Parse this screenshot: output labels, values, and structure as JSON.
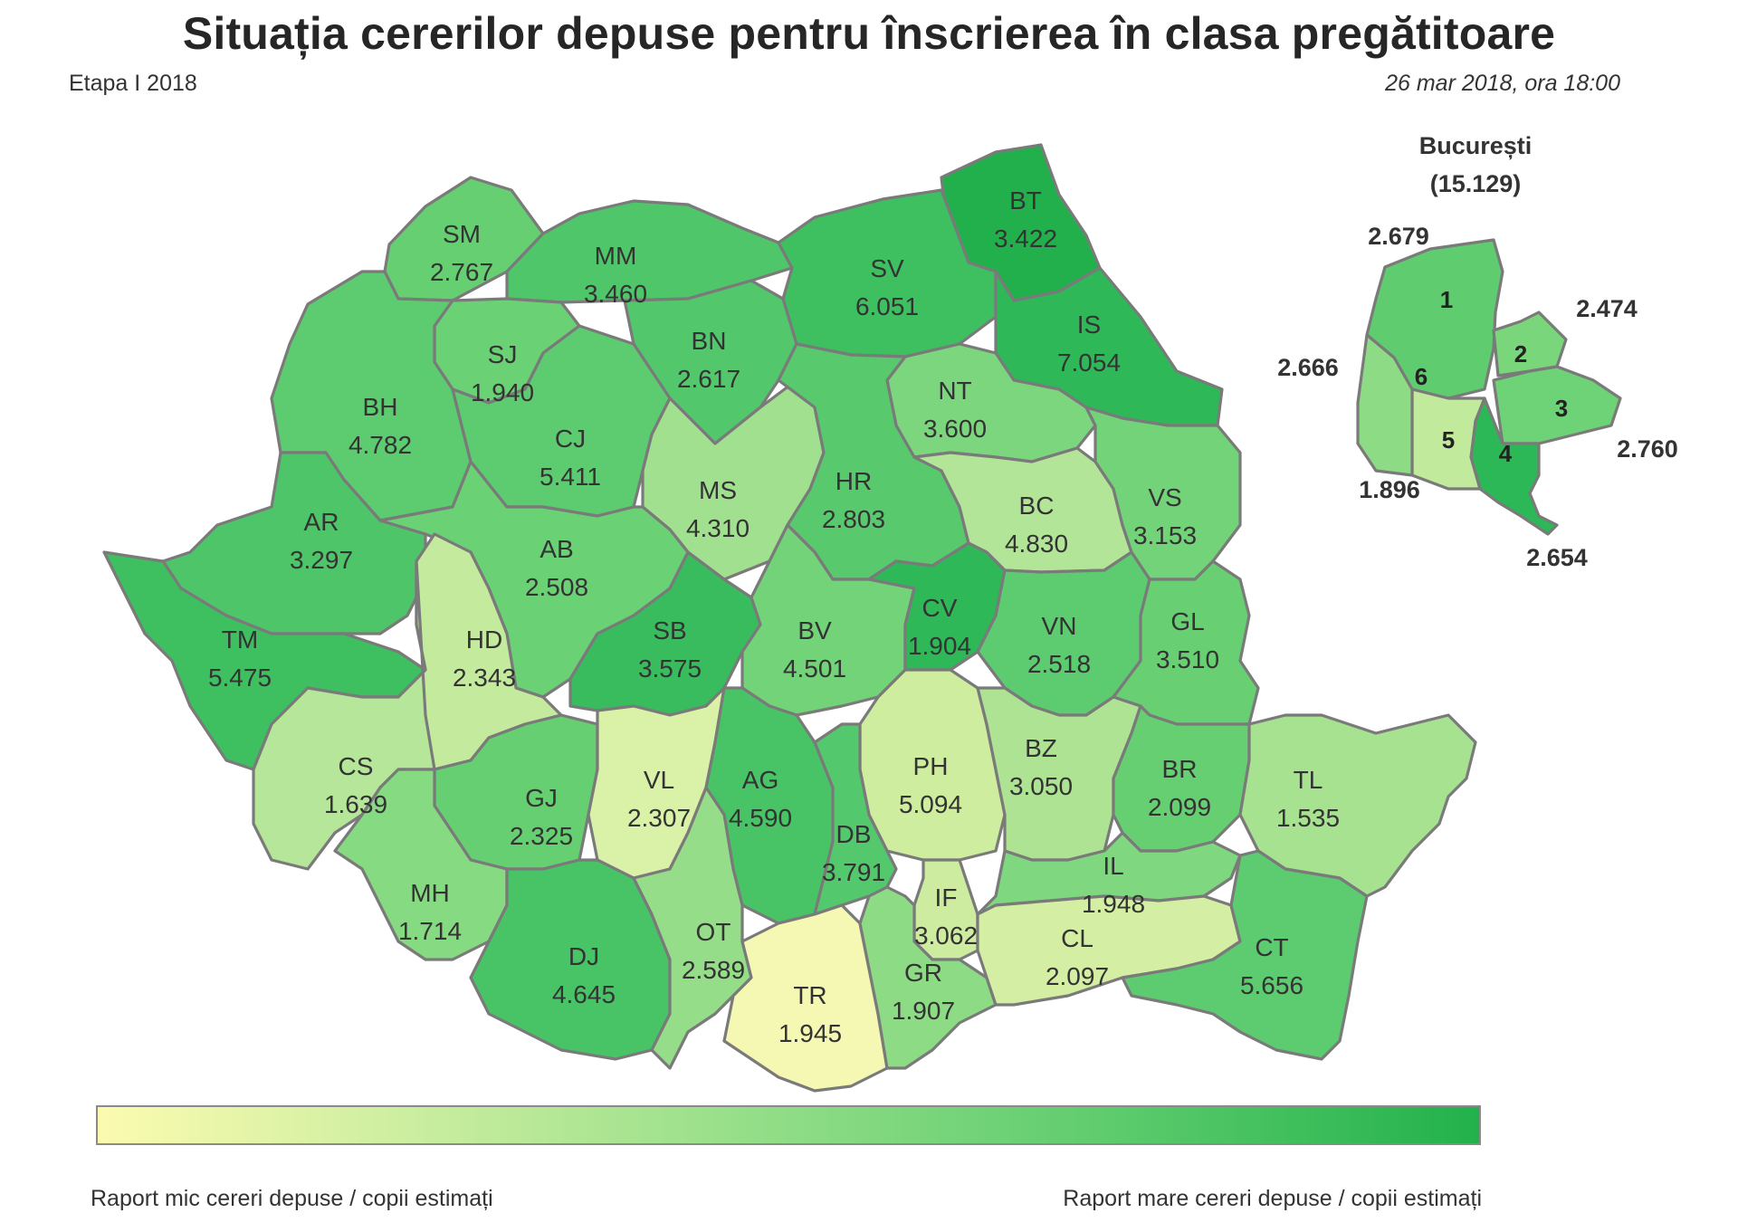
{
  "title": "Situația cererilor depuse pentru înscrierea în clasa pregătitoare",
  "stage": "Etapa I 2018",
  "timestamp": "26 mar 2018, ora 18:00",
  "bucharest": {
    "name": "București",
    "total": "(15.129)",
    "sectors": [
      {
        "id": "1",
        "value": "2.679",
        "color": "#5fcc6f"
      },
      {
        "id": "2",
        "value": "2.474",
        "color": "#7ad67b"
      },
      {
        "id": "3",
        "value": "2.760",
        "color": "#6ed276"
      },
      {
        "id": "4",
        "value": "2.654",
        "color": "#2db857"
      },
      {
        "id": "5",
        "value": "1.896",
        "color": "#c1ea9c"
      },
      {
        "id": "6",
        "value": "2.666",
        "color": "#8ddc85"
      }
    ]
  },
  "counties": [
    {
      "code": "SM",
      "value": "2.767",
      "color": "#66cf72"
    },
    {
      "code": "MM",
      "value": "3.460",
      "color": "#4ec669"
    },
    {
      "code": "BT",
      "value": "3.422",
      "color": "#21b04c"
    },
    {
      "code": "SV",
      "value": "6.051",
      "color": "#3ebf60"
    },
    {
      "code": "SJ",
      "value": "1.940",
      "color": "#6ad174"
    },
    {
      "code": "BN",
      "value": "2.617",
      "color": "#52c76b"
    },
    {
      "code": "IS",
      "value": "7.054",
      "color": "#2fb858"
    },
    {
      "code": "BH",
      "value": "4.782",
      "color": "#5dcb6f"
    },
    {
      "code": "CJ",
      "value": "5.411",
      "color": "#5dcb6f"
    },
    {
      "code": "NT",
      "value": "3.600",
      "color": "#7cd67d"
    },
    {
      "code": "MS",
      "value": "4.310",
      "color": "#a1e08f"
    },
    {
      "code": "HR",
      "value": "2.803",
      "color": "#58c96d"
    },
    {
      "code": "BC",
      "value": "4.830",
      "color": "#b2e597"
    },
    {
      "code": "VS",
      "value": "3.153",
      "color": "#72d378"
    },
    {
      "code": "AR",
      "value": "3.297",
      "color": "#4fc569"
    },
    {
      "code": "AB",
      "value": "2.508",
      "color": "#6ad174"
    },
    {
      "code": "TM",
      "value": "5.475",
      "color": "#3ebf60"
    },
    {
      "code": "HD",
      "value": "2.343",
      "color": "#c3ea9d"
    },
    {
      "code": "SB",
      "value": "3.575",
      "color": "#38bc5d"
    },
    {
      "code": "BV",
      "value": "4.501",
      "color": "#72d378"
    },
    {
      "code": "CV",
      "value": "1.904",
      "color": "#2fb858"
    },
    {
      "code": "VN",
      "value": "2.518",
      "color": "#5dcb6f"
    },
    {
      "code": "GL",
      "value": "3.510",
      "color": "#68d073"
    },
    {
      "code": "CS",
      "value": "1.639",
      "color": "#b6e699"
    },
    {
      "code": "GJ",
      "value": "2.325",
      "color": "#66cf72"
    },
    {
      "code": "VL",
      "value": "2.307",
      "color": "#daf1a8"
    },
    {
      "code": "AG",
      "value": "4.590",
      "color": "#48c366"
    },
    {
      "code": "PH",
      "value": "5.094",
      "color": "#cfed9f"
    },
    {
      "code": "BZ",
      "value": "3.050",
      "color": "#aee394"
    },
    {
      "code": "BR",
      "value": "2.099",
      "color": "#66cf72"
    },
    {
      "code": "TL",
      "value": "1.535",
      "color": "#a7e291"
    },
    {
      "code": "DB",
      "value": "3.791",
      "color": "#54c86c"
    },
    {
      "code": "MH",
      "value": "1.714",
      "color": "#86da81"
    },
    {
      "code": "DJ",
      "value": "4.645",
      "color": "#48c366"
    },
    {
      "code": "OT",
      "value": "2.589",
      "color": "#96dd89"
    },
    {
      "code": "TR",
      "value": "1.945",
      "color": "#f5f8b3"
    },
    {
      "code": "IF",
      "value": "3.062",
      "color": "#cdeca0"
    },
    {
      "code": "GR",
      "value": "1.907",
      "color": "#8ddc85"
    },
    {
      "code": "IL",
      "value": "1.948",
      "color": "#7fd77f"
    },
    {
      "code": "CL",
      "value": "2.097",
      "color": "#d4efa3"
    },
    {
      "code": "CT",
      "value": "5.656",
      "color": "#5dcb6f"
    }
  ],
  "legend": {
    "low_label": "Raport mic cereri depuse / copii estimați",
    "high_label": "Raport mare cereri depuse / copii estimați",
    "low_color": "#fbfbb0",
    "high_color": "#22b14c"
  }
}
